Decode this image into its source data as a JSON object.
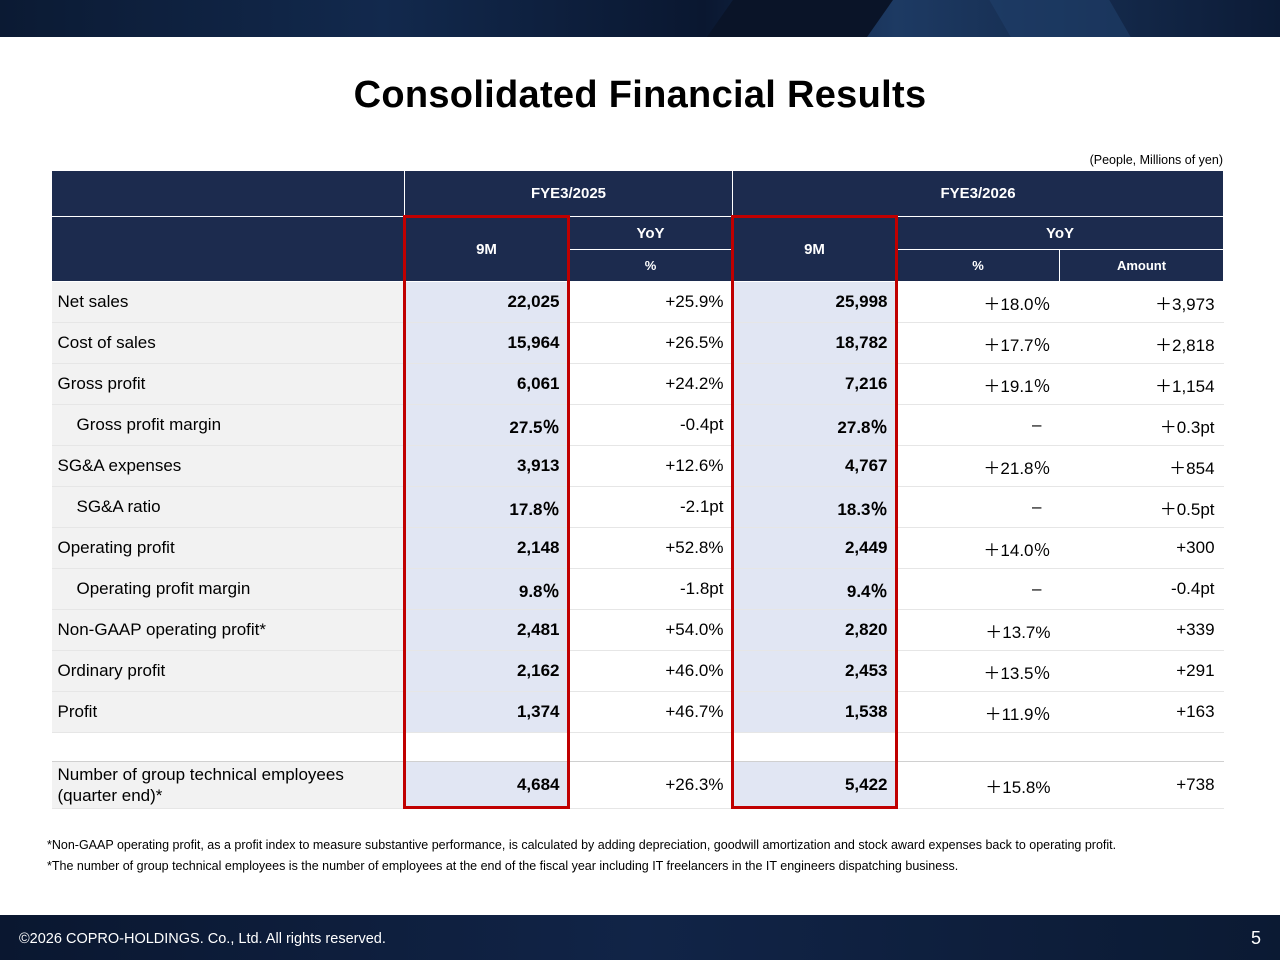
{
  "slide": {
    "title": "Consolidated Financial Results",
    "units_note": "(People, Millions of yen)",
    "footer": {
      "copyright": "©2026 COPRO-HOLDINGS. Co., Ltd. All rights reserved.",
      "page_number": "5"
    }
  },
  "table": {
    "periods": [
      "FYE3/2025",
      "FYE3/2026"
    ],
    "col_9m": "9M",
    "col_yoy": "YoY",
    "col_percent": "%",
    "col_amount": "Amount",
    "rows": [
      {
        "label": "Net sales",
        "fy25_9m": "22,025",
        "fy25_yoy": "+25.9%",
        "fy26_9m": "25,998",
        "fy26_yoy_pct": "＋18.0％",
        "fy26_yoy_amt": "＋3,973"
      },
      {
        "label": "Cost of sales",
        "fy25_9m": "15,964",
        "fy25_yoy": "+26.5%",
        "fy26_9m": "18,782",
        "fy26_yoy_pct": "＋17.7％",
        "fy26_yoy_amt": "＋2,818"
      },
      {
        "label": "Gross profit",
        "fy25_9m": "6,061",
        "fy25_yoy": "+24.2%",
        "fy26_9m": "7,216",
        "fy26_yoy_pct": "＋19.1％",
        "fy26_yoy_amt": "＋1,154"
      },
      {
        "label": "Gross profit margin",
        "fy25_9m": "27.5％",
        "fy25_yoy": "-0.4pt",
        "fy26_9m": "27.8％",
        "fy26_yoy_pct": "–",
        "fy26_yoy_amt": "＋0.3pt"
      },
      {
        "label": "SG&A expenses",
        "fy25_9m": "3,913",
        "fy25_yoy": "+12.6%",
        "fy26_9m": "4,767",
        "fy26_yoy_pct": "＋21.8％",
        "fy26_yoy_amt": "＋854"
      },
      {
        "label": "SG&A ratio",
        "fy25_9m": "17.8％",
        "fy25_yoy": "-2.1pt",
        "fy26_9m": "18.3％",
        "fy26_yoy_pct": "–",
        "fy26_yoy_amt": "＋0.5pt"
      },
      {
        "label": "Operating profit",
        "fy25_9m": "2,148",
        "fy25_yoy": "+52.8%",
        "fy26_9m": "2,449",
        "fy26_yoy_pct": "＋14.0％",
        "fy26_yoy_amt": "+300"
      },
      {
        "label": "Operating profit margin",
        "fy25_9m": "9.8％",
        "fy25_yoy": "-1.8pt",
        "fy26_9m": "9.4％",
        "fy26_yoy_pct": "–",
        "fy26_yoy_amt": "-0.4pt"
      },
      {
        "label": "Non-GAAP operating profit*",
        "fy25_9m": "2,481",
        "fy25_yoy": "+54.0%",
        "fy26_9m": "2,820",
        "fy26_yoy_pct": "＋13.7%",
        "fy26_yoy_amt": "+339"
      },
      {
        "label": "Ordinary profit",
        "fy25_9m": "2,162",
        "fy25_yoy": "+46.0%",
        "fy26_9m": "2,453",
        "fy26_yoy_pct": "＋13.5％",
        "fy26_yoy_amt": "+291"
      },
      {
        "label": "Profit",
        "fy25_9m": "1,374",
        "fy25_yoy": "+46.7%",
        "fy26_9m": "1,538",
        "fy26_yoy_pct": "＋11.9％",
        "fy26_yoy_amt": "+163"
      }
    ],
    "employees": {
      "label_line1": "Number of group technical employees",
      "label_line2": "(quarter end)*",
      "fy25_9m": "4,684",
      "fy25_yoy": "+26.3%",
      "fy26_9m": "5,422",
      "fy26_yoy_pct": "＋15.8%",
      "fy26_yoy_amt": "+738"
    }
  },
  "footnotes": [
    "*Non-GAAP operating profit, as a profit index to measure substantive performance, is calculated by adding depreciation, goodwill amortization and stock award expenses back to operating profit.",
    "*The number of group technical employees is the number of employees at the end of the fiscal year including IT freelancers in the IT engineers dispatching business."
  ],
  "colors": {
    "header_navy": "#1c2b4e",
    "highlight_red": "#c00000",
    "nine_month_fill": "#e1e6f3",
    "label_fill": "#f2f2f2"
  }
}
